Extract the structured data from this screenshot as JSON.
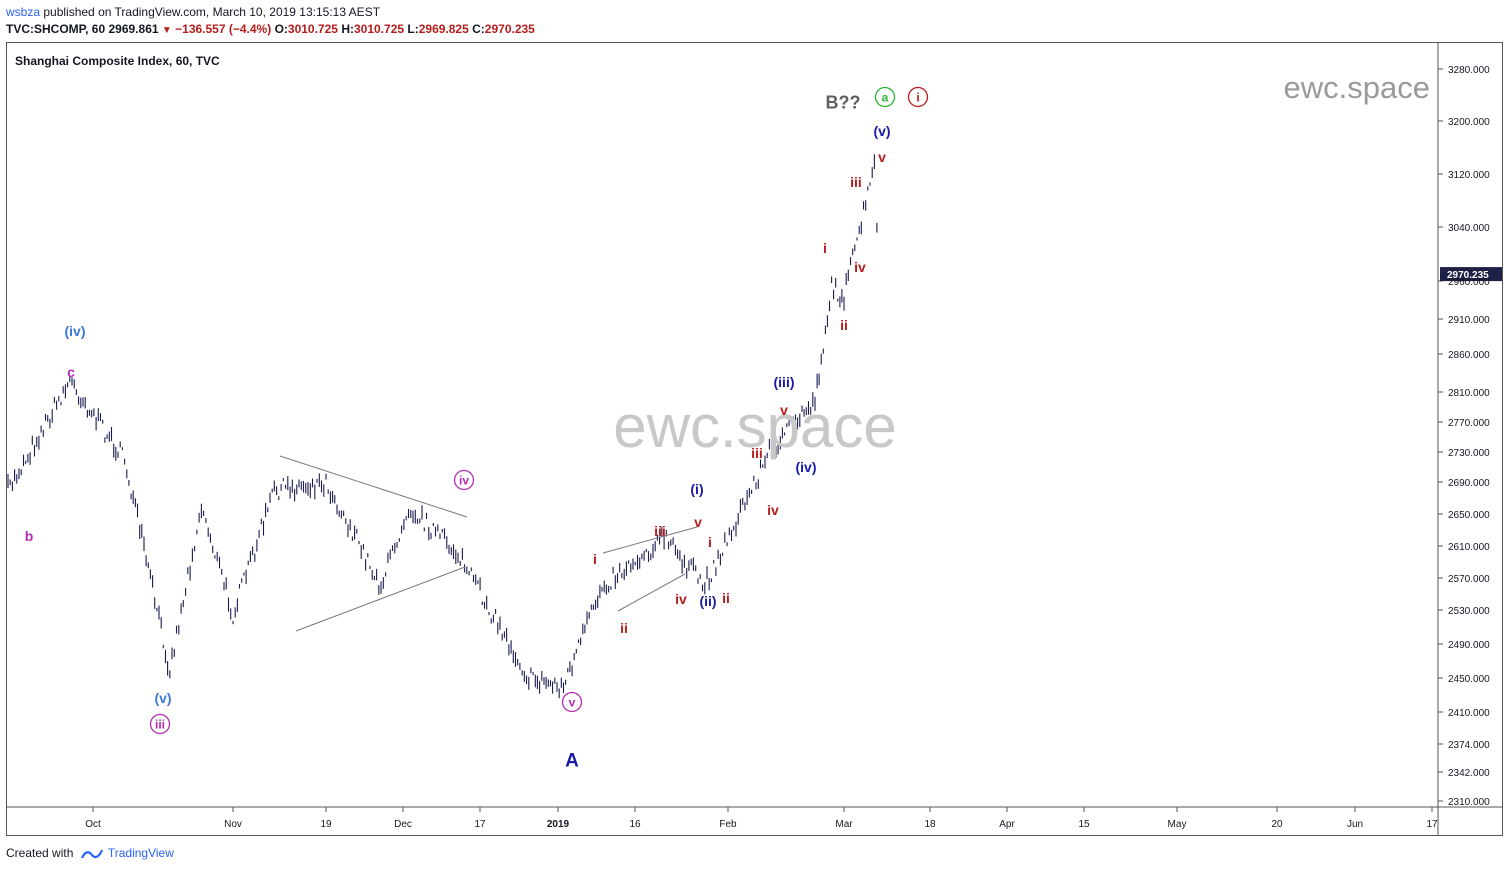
{
  "header": {
    "author": "wsbza",
    "published_text": "published on TradingView.com, March 10, 2019 13:15:13 AEST",
    "symbol": "TVC:SHCOMP, 60",
    "last": "2969.861",
    "change": "−136.557 (−4.4%)",
    "o_label": "O:",
    "o_value": "3010.725",
    "h_label": "H:",
    "h_value": "3010.725",
    "l_label": "L:",
    "l_value": "2969.825",
    "c_label": "C:",
    "c_value": "2970.235"
  },
  "footer": {
    "created_with": "Created with",
    "brand": "TradingView"
  },
  "colors": {
    "candle": "#1a1a4e",
    "blue_label": "#3c78d8",
    "navy_label": "#1a1aa6",
    "red_label": "#b71c1c",
    "magenta_label": "#b32db3",
    "green_label": "#2db32d",
    "grey_label": "#606060",
    "watermark": "#c8c8c8",
    "price_tag_bg": "#1f2046"
  },
  "chart_data": {
    "type": "line",
    "title": "Shanghai Composite Index, 60, TVC",
    "watermark_center": "ewc.space",
    "watermark_corner": "ewc.space",
    "y_ticks": [
      "3280.000",
      "3200.000",
      "3120.000",
      "3040.000",
      "2960.000",
      "2910.000",
      "2860.000",
      "2810.000",
      "2770.000",
      "2730.000",
      "2690.000",
      "2650.000",
      "2610.000",
      "2570.000",
      "2530.000",
      "2490.000",
      "2450.000",
      "2410.000",
      "2374.000",
      "2342.000",
      "2310.000"
    ],
    "x_ticks": [
      {
        "label": "Oct",
        "bold": false
      },
      {
        "label": "Nov",
        "bold": false
      },
      {
        "label": "19",
        "bold": false
      },
      {
        "label": "Dec",
        "bold": false
      },
      {
        "label": "17",
        "bold": false
      },
      {
        "label": "2019",
        "bold": true
      },
      {
        "label": "16",
        "bold": false
      },
      {
        "label": "Feb",
        "bold": false
      },
      {
        "label": "Mar",
        "bold": false
      },
      {
        "label": "18",
        "bold": false
      },
      {
        "label": "Apr",
        "bold": false
      },
      {
        "label": "15",
        "bold": false
      },
      {
        "label": "May",
        "bold": false
      },
      {
        "label": "20",
        "bold": false
      },
      {
        "label": "Jun",
        "bold": false
      },
      {
        "label": "17",
        "bold": false
      }
    ],
    "last_price_tag": "2970.235",
    "series": [
      {
        "x": [
          "2018-09-20",
          "2018-09-28",
          "2018-10-08",
          "2018-10-18",
          "2018-10-25",
          "2018-11-01",
          "2018-11-09",
          "2018-11-19",
          "2018-11-29",
          "2018-12-04",
          "2018-12-13",
          "2018-12-27",
          "2019-01-03",
          "2019-01-10",
          "2019-01-21",
          "2019-01-28",
          "2019-02-11",
          "2019-02-22",
          "2019-02-26",
          "2019-03-01",
          "2019-03-07",
          "2019-03-08"
        ],
        "values": [
          2680,
          2825,
          2720,
          2460,
          2660,
          2525,
          2680,
          2690,
          2560,
          2660,
          2600,
          2450,
          2440,
          2560,
          2620,
          2560,
          2730,
          2800,
          2950,
          2940,
          3130,
          2970
        ]
      }
    ],
    "annotations": [
      {
        "text": "(iv)",
        "color": "blue_label",
        "style": "paren"
      },
      {
        "text": "c",
        "color": "magenta_label",
        "style": "plain"
      },
      {
        "text": "b",
        "color": "magenta_label",
        "style": "plain"
      },
      {
        "text": "(v)",
        "color": "blue_label",
        "style": "paren"
      },
      {
        "text": "iii",
        "color": "magenta_label",
        "style": "circle"
      },
      {
        "text": "iv",
        "color": "magenta_label",
        "style": "circle"
      },
      {
        "text": "v",
        "color": "magenta_label",
        "style": "circle"
      },
      {
        "text": "A",
        "color": "navy_label",
        "style": "big"
      },
      {
        "text": "i",
        "color": "red_label",
        "style": "plain"
      },
      {
        "text": "ii",
        "color": "red_label",
        "style": "plain"
      },
      {
        "text": "iii",
        "color": "red_label",
        "style": "plain"
      },
      {
        "text": "iv",
        "color": "red_label",
        "style": "plain"
      },
      {
        "text": "v",
        "color": "red_label",
        "style": "plain"
      },
      {
        "text": "(i)",
        "color": "navy_label",
        "style": "paren"
      },
      {
        "text": "(ii)",
        "color": "navy_label",
        "style": "paren"
      },
      {
        "text": "i",
        "color": "red_label",
        "style": "plain"
      },
      {
        "text": "ii",
        "color": "red_label",
        "style": "plain"
      },
      {
        "text": "iii",
        "color": "red_label",
        "style": "plain"
      },
      {
        "text": "iv",
        "color": "red_label",
        "style": "plain"
      },
      {
        "text": "v",
        "color": "red_label",
        "style": "plain"
      },
      {
        "text": "(iii)",
        "color": "navy_label",
        "style": "paren"
      },
      {
        "text": "(iv)",
        "color": "navy_label",
        "style": "paren"
      },
      {
        "text": "i",
        "color": "red_label",
        "style": "plain"
      },
      {
        "text": "ii",
        "color": "red_label",
        "style": "plain"
      },
      {
        "text": "iii",
        "color": "red_label",
        "style": "plain"
      },
      {
        "text": "iv",
        "color": "red_label",
        "style": "plain"
      },
      {
        "text": "v",
        "color": "red_label",
        "style": "plain"
      },
      {
        "text": "(v)",
        "color": "navy_label",
        "style": "paren"
      },
      {
        "text": "B??",
        "color": "grey_label",
        "style": "bold"
      },
      {
        "text": "a",
        "color": "green_label",
        "style": "circle"
      },
      {
        "text": "i",
        "color": "red_label",
        "style": "circle"
      }
    ]
  }
}
